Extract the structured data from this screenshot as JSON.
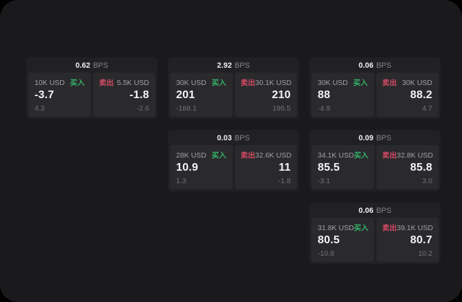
{
  "labels": {
    "bps_unit": "BPS",
    "buy": "买入",
    "sell": "卖出"
  },
  "colors": {
    "buy": "#34b369",
    "sell": "#d64b66",
    "panel_background": "#1a1a1c",
    "card_background": "#212124",
    "tile_background": "#2a2a2d"
  },
  "cards": [
    {
      "col": 1,
      "row": 1,
      "bps": "0.62",
      "buy": {
        "notional": "10K USD",
        "value": "-3.7",
        "delta": "4.3"
      },
      "sell": {
        "notional": "5.5K USD",
        "value": "-1.8",
        "delta": "-2.6"
      }
    },
    {
      "col": 2,
      "row": 1,
      "bps": "2.92",
      "buy": {
        "notional": "30K USD",
        "value": "201",
        "delta": "-188.1"
      },
      "sell": {
        "notional": "30.1K USD",
        "value": "210",
        "delta": "196.5"
      }
    },
    {
      "col": 3,
      "row": 1,
      "bps": "0.06",
      "buy": {
        "notional": "30K USD",
        "value": "88",
        "delta": "-4.9"
      },
      "sell": {
        "notional": "30K USD",
        "value": "88.2",
        "delta": "4.7"
      }
    },
    {
      "col": 2,
      "row": 2,
      "bps": "0.03",
      "buy": {
        "notional": "28K USD",
        "value": "10.9",
        "delta": "1.3"
      },
      "sell": {
        "notional": "32.6K USD",
        "value": "11",
        "delta": "-1.8"
      }
    },
    {
      "col": 3,
      "row": 2,
      "bps": "0.09",
      "buy": {
        "notional": "34.1K USD",
        "value": "85.5",
        "delta": "-3.1"
      },
      "sell": {
        "notional": "32.8K USD",
        "value": "85.8",
        "delta": "3.0"
      }
    },
    {
      "col": 3,
      "row": 3,
      "bps": "0.06",
      "buy": {
        "notional": "31.8K USD",
        "value": "80.5",
        "delta": "-10.8"
      },
      "sell": {
        "notional": "39.1K USD",
        "value": "80.7",
        "delta": "10.2"
      }
    }
  ]
}
